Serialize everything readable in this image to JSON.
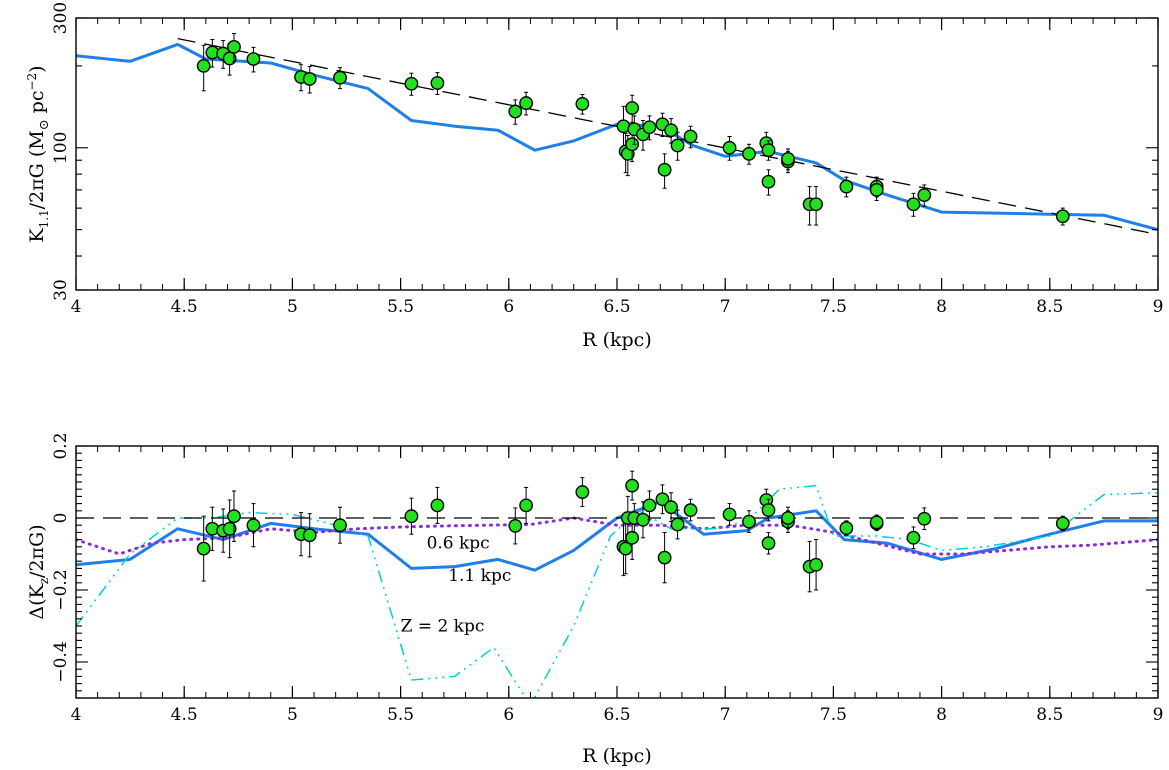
{
  "colors": {
    "model_11": "#1f7fe6",
    "model_06": "#8a2be2",
    "model_2": "#00d0d8",
    "points_fill": "#22e01e",
    "points_edge": "#000000",
    "reference": "#000000"
  },
  "chart_data": [
    {
      "type": "scatter",
      "title": "",
      "xlabel": "R (kpc)",
      "ylabel": "K",
      "ylabel_sub": "1.1",
      "ylabel_rest": "/2πG (M",
      "ylabel_sun": "⊙",
      "ylabel_unit": " pc",
      "ylabel_sup": "−2",
      "ylabel_close": ")",
      "xlim": [
        4,
        9
      ],
      "ylim": [
        30,
        300
      ],
      "yscale": "log",
      "xticks": [
        4,
        4.5,
        5,
        5.5,
        6,
        6.5,
        7,
        7.5,
        8,
        8.5,
        9
      ],
      "xtick_labels": [
        "4",
        "4.5",
        "5",
        "5.5",
        "6",
        "6.5",
        "7",
        "7.5",
        "8",
        "8.5",
        "9"
      ],
      "yticks": [
        30,
        100,
        300
      ],
      "ytick_labels": [
        "30",
        "100",
        "300"
      ],
      "series": [
        {
          "style": "solid-line",
          "color_key": "model_11",
          "x": [
            4.0,
            4.25,
            4.47,
            4.6,
            4.9,
            5.1,
            5.35,
            5.55,
            5.75,
            5.95,
            6.12,
            6.3,
            6.5,
            6.7,
            6.85,
            7.0,
            7.2,
            7.42,
            7.55,
            7.75,
            8.0,
            8.25,
            8.5,
            8.75,
            9.0
          ],
          "y": [
            218,
            208,
            240,
            212,
            205,
            185,
            165,
            126,
            120,
            116,
            98,
            106,
            122,
            120,
            102,
            93,
            97,
            88,
            76,
            67,
            58,
            57.5,
            57,
            56.5,
            50
          ]
        },
        {
          "style": "dashed-line",
          "color_key": "reference",
          "x": [
            4.47,
            9.0
          ],
          "y": [
            252,
            48
          ]
        },
        {
          "style": "points",
          "x": [
            4.59,
            4.63,
            4.68,
            4.71,
            4.73,
            4.82,
            5.04,
            5.08,
            5.22,
            5.55,
            5.67,
            6.03,
            6.08,
            6.34,
            6.53,
            6.54,
            6.55,
            6.57,
            6.57,
            6.58,
            6.62,
            6.65,
            6.71,
            6.72,
            6.75,
            6.78,
            6.84,
            7.02,
            7.11,
            7.19,
            7.2,
            7.2,
            7.29,
            7.29,
            7.39,
            7.42,
            7.56,
            7.7,
            7.7,
            7.87,
            7.92,
            8.56
          ],
          "y": [
            200,
            224,
            222,
            213,
            235,
            212,
            182,
            179,
            181,
            172,
            173,
            136,
            146,
            145,
            120,
            97,
            95,
            140,
            103,
            117,
            112,
            119,
            122,
            83,
            116,
            102,
            110,
            100,
            95,
            104,
            98,
            75,
            89,
            91,
            62,
            62,
            72,
            72,
            70,
            62,
            67,
            56
          ],
          "err": [
            38,
            26,
            26,
            28,
            28,
            22,
            20,
            20,
            16,
            16,
            16,
            14,
            14,
            12,
            22,
            16,
            16,
            16,
            14,
            14,
            14,
            12,
            12,
            12,
            12,
            12,
            10,
            10,
            8,
            10,
            8,
            8,
            8,
            8,
            10,
            10,
            6,
            6,
            6,
            6,
            6,
            4
          ]
        }
      ]
    },
    {
      "type": "scatter",
      "title": "",
      "xlabel": "R (kpc)",
      "ylabel": "Δ(K",
      "ylabel_sub": "z",
      "ylabel_rest": "/2πG)",
      "xlim": [
        4,
        9
      ],
      "ylim": [
        -0.5,
        0.2
      ],
      "xticks": [
        4,
        4.5,
        5,
        5.5,
        6,
        6.5,
        7,
        7.5,
        8,
        8.5,
        9
      ],
      "xtick_labels": [
        "4",
        "4.5",
        "5",
        "5.5",
        "6",
        "6.5",
        "7",
        "7.5",
        "8",
        "8.5",
        "9"
      ],
      "yticks": [
        0.2,
        0,
        -0.2,
        -0.4
      ],
      "ytick_labels": [
        "0.2",
        "0",
        "−0.2",
        "−0.4"
      ],
      "annotations": [
        {
          "text": "0.6 kpc",
          "x": 5.62,
          "y": -0.085
        },
        {
          "text": "1.1 kpc",
          "x": 5.72,
          "y": -0.175
        },
        {
          "text": "Z = 2 kpc",
          "x": 5.5,
          "y": -0.315
        }
      ],
      "series": [
        {
          "style": "solid-line",
          "color_key": "model_11",
          "x": [
            4.0,
            4.25,
            4.47,
            4.68,
            4.9,
            5.1,
            5.35,
            5.55,
            5.75,
            5.95,
            6.12,
            6.3,
            6.5,
            6.7,
            6.9,
            7.1,
            7.2,
            7.42,
            7.55,
            7.75,
            8.0,
            8.25,
            8.5,
            8.75,
            9.0
          ],
          "y": [
            -0.13,
            -0.115,
            -0.03,
            -0.06,
            -0.015,
            -0.03,
            -0.045,
            -0.14,
            -0.135,
            -0.115,
            -0.145,
            -0.09,
            0.0,
            0.045,
            -0.045,
            -0.035,
            0.0,
            0.02,
            -0.06,
            -0.07,
            -0.115,
            -0.085,
            -0.045,
            -0.008,
            -0.008
          ]
        },
        {
          "style": "dotted-line",
          "color_key": "model_06",
          "x": [
            4.0,
            4.2,
            4.35,
            4.5,
            4.7,
            4.9,
            5.1,
            5.3,
            5.5,
            5.7,
            5.9,
            6.1,
            6.3,
            6.5,
            6.7,
            6.9,
            7.1,
            7.3,
            7.5,
            7.7,
            7.9,
            8.1,
            8.3,
            8.5,
            8.7,
            9.0
          ],
          "y": [
            -0.06,
            -0.1,
            -0.07,
            -0.06,
            -0.055,
            -0.03,
            -0.04,
            -0.03,
            -0.025,
            -0.022,
            -0.02,
            -0.018,
            0.0,
            -0.02,
            -0.02,
            -0.03,
            -0.02,
            -0.02,
            -0.04,
            -0.07,
            -0.1,
            -0.1,
            -0.09,
            -0.08,
            -0.075,
            -0.06
          ]
        },
        {
          "style": "dash-dot-line",
          "color_key": "model_2",
          "x": [
            4.0,
            4.25,
            4.47,
            4.62,
            4.8,
            5.0,
            5.2,
            5.35,
            5.55,
            5.75,
            5.93,
            6.1,
            6.3,
            6.47,
            6.6,
            6.75,
            6.95,
            7.1,
            7.25,
            7.42,
            7.5,
            7.7,
            7.85,
            8.0,
            8.2,
            8.5,
            8.75,
            9.0
          ],
          "y": [
            -0.3,
            -0.1,
            0.0,
            0.0,
            0.015,
            0.01,
            -0.02,
            -0.05,
            -0.45,
            -0.44,
            -0.36,
            -0.52,
            -0.3,
            -0.05,
            0.02,
            -0.03,
            -0.03,
            -0.01,
            0.08,
            0.09,
            -0.05,
            -0.05,
            -0.06,
            -0.09,
            -0.08,
            -0.05,
            0.065,
            0.07
          ]
        },
        {
          "style": "dashed-line",
          "color_key": "reference",
          "x": [
            4.0,
            9.0
          ],
          "y": [
            0.0,
            0.0
          ]
        },
        {
          "style": "points",
          "x": [
            4.59,
            4.63,
            4.68,
            4.71,
            4.73,
            4.82,
            5.04,
            5.08,
            5.22,
            5.55,
            5.67,
            6.03,
            6.08,
            6.34,
            6.53,
            6.54,
            6.55,
            6.57,
            6.57,
            6.58,
            6.62,
            6.65,
            6.71,
            6.72,
            6.75,
            6.78,
            6.84,
            7.02,
            7.11,
            7.19,
            7.2,
            7.2,
            7.29,
            7.29,
            7.39,
            7.42,
            7.56,
            7.7,
            7.7,
            7.87,
            7.92,
            8.56
          ],
          "y": [
            -0.085,
            -0.03,
            -0.035,
            -0.03,
            0.005,
            -0.02,
            -0.045,
            -0.048,
            -0.02,
            0.005,
            0.035,
            -0.022,
            0.035,
            0.072,
            -0.08,
            -0.085,
            0.0,
            0.09,
            -0.055,
            0.0,
            -0.005,
            0.035,
            0.052,
            -0.11,
            0.03,
            -0.018,
            0.022,
            0.01,
            -0.01,
            0.05,
            0.022,
            -0.07,
            -0.01,
            0.0,
            -0.135,
            -0.13,
            -0.028,
            -0.015,
            -0.012,
            -0.055,
            -0.002,
            -0.015
          ],
          "err": [
            0.09,
            0.06,
            0.06,
            0.08,
            0.07,
            0.06,
            0.06,
            0.06,
            0.05,
            0.05,
            0.05,
            0.05,
            0.05,
            0.04,
            0.08,
            0.07,
            0.06,
            0.04,
            0.06,
            0.04,
            0.05,
            0.04,
            0.04,
            0.07,
            0.04,
            0.04,
            0.03,
            0.03,
            0.03,
            0.03,
            0.03,
            0.03,
            0.03,
            0.03,
            0.07,
            0.07,
            0.02,
            0.02,
            0.02,
            0.03,
            0.03,
            0.02
          ]
        }
      ]
    }
  ]
}
